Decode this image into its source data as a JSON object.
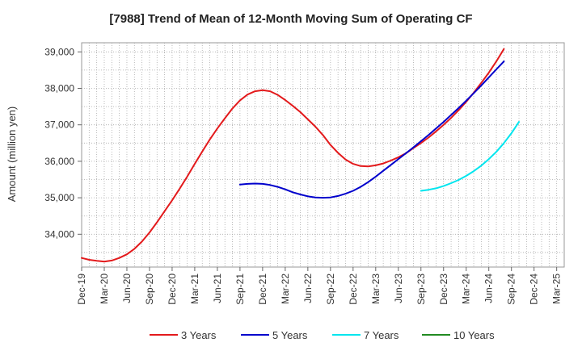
{
  "chart_data": {
    "type": "line",
    "title": "[7988]  Trend of Mean of 12-Month Moving Sum of Operating CF",
    "xlabel": "",
    "ylabel": "Amount (million yen)",
    "ylim": [
      33100,
      39250
    ],
    "yticks": [
      34000,
      35000,
      36000,
      37000,
      38000,
      39000
    ],
    "ytick_labels": [
      "34,000",
      "35,000",
      "36,000",
      "37,000",
      "38,000",
      "39,000"
    ],
    "x_months_start": "Dec-19",
    "x_months_count": 64,
    "xtick_labels": [
      "Dec-19",
      "Mar-20",
      "Jun-20",
      "Sep-20",
      "Dec-20",
      "Mar-21",
      "Jun-21",
      "Sep-21",
      "Dec-21",
      "Mar-22",
      "Jun-22",
      "Sep-22",
      "Dec-22",
      "Mar-23",
      "Jun-23",
      "Sep-23",
      "Dec-23",
      "Mar-24",
      "Jun-24",
      "Sep-24",
      "Dec-24",
      "Mar-25"
    ],
    "grid": true,
    "legend_position": "bottom",
    "series": [
      {
        "name": "3 Years",
        "color": "#e31a1c",
        "start_index": 0,
        "values": [
          33350,
          33300,
          33270,
          33250,
          33280,
          33350,
          33450,
          33600,
          33800,
          34050,
          34330,
          34630,
          34930,
          35250,
          35580,
          35930,
          36270,
          36600,
          36900,
          37180,
          37450,
          37670,
          37830,
          37920,
          37950,
          37920,
          37820,
          37680,
          37520,
          37350,
          37150,
          36950,
          36720,
          36450,
          36230,
          36050,
          35930,
          35870,
          35860,
          35890,
          35940,
          36020,
          36110,
          36220,
          36360,
          36500,
          36650,
          36820,
          37000,
          37190,
          37400,
          37630,
          37880,
          38150,
          38430,
          38740,
          39080
        ]
      },
      {
        "name": "5 Years",
        "color": "#0000cc",
        "start_index": 21,
        "values": [
          35360,
          35380,
          35390,
          35380,
          35350,
          35300,
          35230,
          35150,
          35090,
          35040,
          35010,
          35000,
          35010,
          35050,
          35110,
          35190,
          35300,
          35430,
          35580,
          35740,
          35900,
          36060,
          36220,
          36380,
          36550,
          36720,
          36900,
          37080,
          37270,
          37460,
          37660,
          37870,
          38080,
          38300,
          38520,
          38740
        ]
      },
      {
        "name": "7 Years",
        "color": "#00e5ee",
        "start_index": 45,
        "values": [
          35190,
          35220,
          35260,
          35320,
          35400,
          35490,
          35600,
          35730,
          35880,
          36060,
          36260,
          36500,
          36770,
          37080
        ]
      },
      {
        "name": "10 Years",
        "color": "#228b22",
        "start_index": 0,
        "values": []
      }
    ]
  }
}
